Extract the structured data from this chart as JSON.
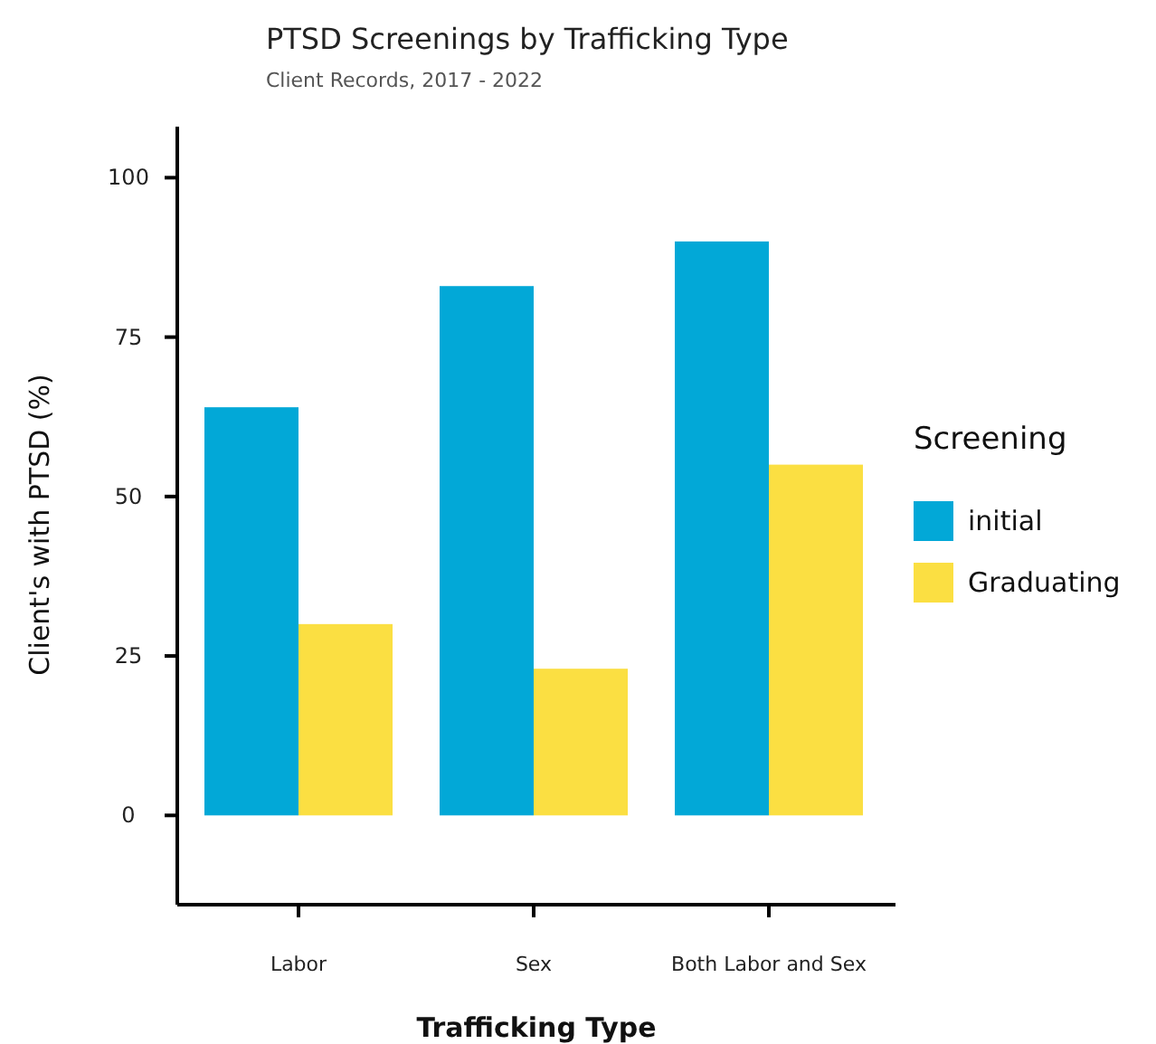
{
  "chart_data": {
    "type": "bar",
    "title": "PTSD Screenings by Trafficking Type",
    "subtitle": "Client Records, 2017 - 2022",
    "xlabel": "Trafficking Type",
    "ylabel": "Client's with PTSD  (%)",
    "legend_title": "Screening",
    "legend": "right",
    "categories": [
      "Labor",
      "Sex",
      "Both Labor and Sex"
    ],
    "series": [
      {
        "name": "initial",
        "color": "#02a8d7",
        "values": [
          64,
          83,
          90
        ]
      },
      {
        "name": "Graduating",
        "color": "#fbdf42",
        "values": [
          30,
          23,
          55
        ]
      }
    ],
    "ylim": [
      -14,
      108
    ],
    "yticks": [
      0,
      25,
      50,
      75,
      100
    ],
    "grid": false
  }
}
